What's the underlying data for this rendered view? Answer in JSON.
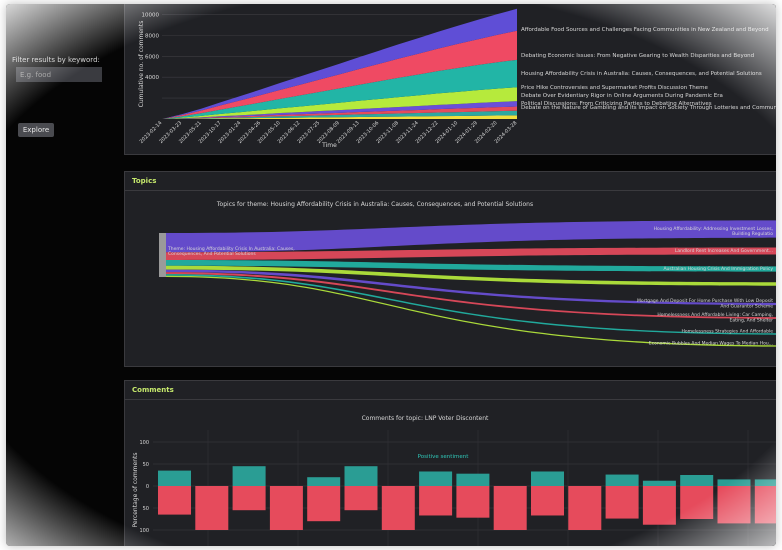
{
  "sidebar": {
    "filter_label": "Filter results by keyword:",
    "keyword_placeholder": "E.g. food",
    "explore_label": "Explore"
  },
  "chart_data": [
    {
      "type": "area",
      "title": "",
      "xlabel": "Time",
      "ylabel": "Cumulative no. of comments",
      "yticks": [
        4000,
        6000,
        8000,
        10000
      ],
      "x": [
        "2023-02-14",
        "2023-03-23",
        "2023-05-21",
        "2023-10-17",
        "2023-01-24",
        "2023-04-26",
        "2023-05-10",
        "2023-06-12",
        "2023-07-25",
        "2023-08-09",
        "2023-09-13",
        "2023-10-06",
        "2023-11-08",
        "2023-11-24",
        "2023-12-22",
        "2024-01-10",
        "2024-01-29",
        "2024-02-20",
        "2024-03-28"
      ],
      "series": [
        {
          "name": "Debate on the Nature of Gambling and Its Impact on Society Through Lotteries and Community Funding",
          "color": "#f2de3c",
          "values": [
            0,
            10,
            30,
            50,
            70,
            90,
            110,
            130,
            150,
            170,
            190,
            210,
            230,
            250,
            270,
            290,
            310,
            330,
            350
          ]
        },
        {
          "name": "Political Discussions: From Criticizing Parties to Debating Alternatives",
          "color": "#2ea8a0",
          "values": [
            0,
            20,
            40,
            70,
            90,
            120,
            150,
            170,
            200,
            220,
            250,
            270,
            300,
            320,
            350,
            370,
            400,
            420,
            440
          ]
        },
        {
          "name": "Debate Over Evidentiary Rigor in Online Arguments During Pandemic Era",
          "color": "#e64b5c",
          "values": [
            0,
            20,
            40,
            70,
            90,
            110,
            140,
            160,
            180,
            200,
            230,
            250,
            270,
            290,
            320,
            340,
            360,
            380,
            400
          ]
        },
        {
          "name": "Price Hike Controversies and Supermarket Profits Discussion Theme",
          "color": "#6a4fd8",
          "values": [
            0,
            20,
            50,
            80,
            110,
            140,
            170,
            200,
            230,
            260,
            290,
            320,
            350,
            380,
            410,
            440,
            470,
            500,
            520
          ]
        },
        {
          "name": "Housing Affordability Crisis in Australia: Causes, Consequences, and Potential Solutions",
          "color": "#b6ea3c",
          "values": [
            0,
            60,
            140,
            220,
            300,
            380,
            460,
            540,
            620,
            700,
            780,
            860,
            940,
            1020,
            1100,
            1160,
            1220,
            1280,
            1330
          ]
        },
        {
          "name": "Debating Economic Issues: From Negative Gearing to Wealth Disparities and Beyond",
          "color": "#22b5a6",
          "values": [
            0,
            120,
            260,
            420,
            580,
            740,
            900,
            1060,
            1220,
            1380,
            1540,
            1700,
            1860,
            2000,
            2140,
            2280,
            2400,
            2520,
            2620
          ]
        },
        {
          "name": "Affordable Food Sources and Challenges Facing Communities in New Zealand and Beyond",
          "color": "#ef4a63",
          "values": [
            0,
            120,
            250,
            400,
            550,
            700,
            860,
            1020,
            1180,
            1340,
            1500,
            1660,
            1820,
            1980,
            2140,
            2300,
            2460,
            2620,
            2780
          ]
        },
        {
          "name": "",
          "color": "#5f4ed6",
          "values": [
            0,
            80,
            180,
            300,
            420,
            540,
            660,
            780,
            900,
            1020,
            1140,
            1260,
            1380,
            1500,
            1620,
            1740,
            1860,
            1980,
            2100
          ]
        }
      ]
    },
    {
      "type": "sankey",
      "title": "Topics for theme: Housing Affordability Crisis in Australia: Causes, Consequences, and Potential Solutions",
      "source": "Theme: Housing Affordability Crisis In Australia: Causes, Consequences, And Potential Solutions",
      "flows": [
        {
          "label": "Housing Affordability: Addressing Investment Losses,",
          "label2": "Building Regulatio",
          "value": 30,
          "color": "#6a4fd8"
        },
        {
          "label": "Landlord Rent Increases And Government...",
          "label2": "",
          "value": 12,
          "color": "#e64b5c"
        },
        {
          "label": "Australian Housing Crisis And Immigration Policy",
          "label2": "",
          "value": 9,
          "color": "#22b5a6"
        },
        {
          "label": "",
          "label2": "",
          "value": 6,
          "color": "#b6ea3c"
        },
        {
          "label": "Mortgage And Deposit For Home Purchase With Low Deposit",
          "label2": "And Guarantor Scheme",
          "value": 4,
          "color": "#6a4fd8"
        },
        {
          "label": "Homelessness And Affordable Living: Car Camping,",
          "label2": "Eating, And Shelter",
          "value": 3,
          "color": "#e64b5c"
        },
        {
          "label": "Homelessness Strategies And Affordable",
          "label2": "",
          "value": 2.5,
          "color": "#22b5a6"
        },
        {
          "label": "Economic Bubbles And Median Wages To Median Hou...",
          "label2": "",
          "value": 2,
          "color": "#b6ea3c"
        }
      ]
    },
    {
      "type": "bar",
      "title": "Comments for topic: LNP Voter Discontent",
      "ylabel": "Percentage of comments",
      "yticks": [
        100,
        50,
        0,
        -50,
        -100
      ],
      "ytick_labels": [
        "100",
        "50",
        "0",
        "50",
        "100"
      ],
      "annotation": "Positive sentiment",
      "series": [
        {
          "name": "positive",
          "color": "#2a9d94",
          "values": [
            35,
            0,
            45,
            0,
            20,
            45,
            0,
            33,
            28,
            0,
            33,
            0,
            26,
            12,
            25,
            15,
            15
          ]
        },
        {
          "name": "negative",
          "color": "#e64b5c",
          "values": [
            -65,
            -100,
            -55,
            -100,
            -80,
            -55,
            -100,
            -67,
            -72,
            -100,
            -67,
            -100,
            -74,
            -88,
            -75,
            -85,
            -85
          ]
        }
      ]
    }
  ],
  "panels": {
    "topics_header": "Topics",
    "comments_header": "Comments"
  }
}
